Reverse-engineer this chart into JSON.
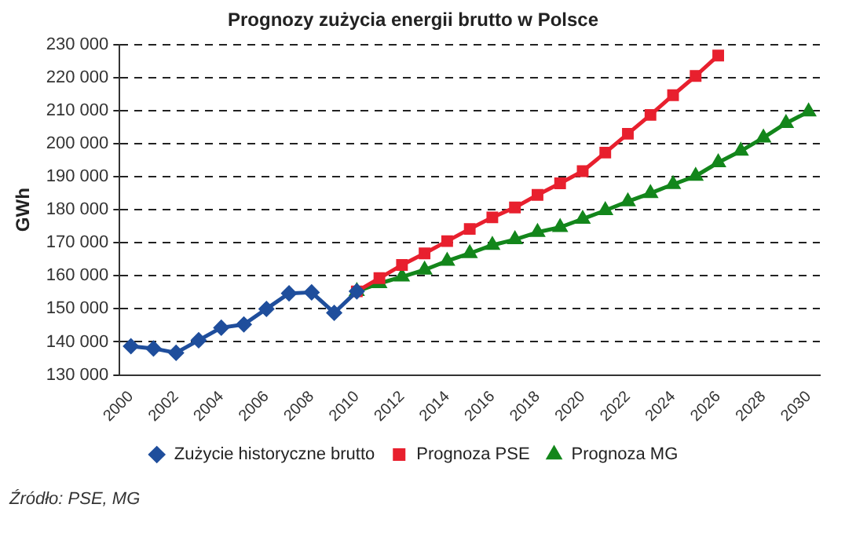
{
  "chart_data": {
    "type": "line",
    "title": "Prognozy zużycia energii brutto w Polsce",
    "ylabel": "GWh",
    "categories": [
      "2000",
      null,
      "2002",
      null,
      "2004",
      null,
      "2006",
      null,
      "2008",
      null,
      "2010",
      null,
      "2012",
      null,
      "2014",
      null,
      "2016",
      null,
      "2018",
      null,
      "2020",
      null,
      "2022",
      null,
      "2024",
      null,
      "2026",
      null,
      "2028",
      null,
      "2030"
    ],
    "series": [
      {
        "name": "Zużycie historyczne brutto",
        "color": "#1f4e9c",
        "marker": "diamond",
        "values": [
          138700,
          138000,
          136700,
          140500,
          144300,
          145300,
          150000,
          154700,
          155000,
          148800,
          155300,
          null,
          null,
          null,
          null,
          null,
          null,
          null,
          null,
          null,
          null,
          null,
          null,
          null,
          null,
          null,
          null,
          null,
          null,
          null,
          null
        ]
      },
      {
        "name": "Prognoza PSE",
        "color": "#e8202e",
        "marker": "square",
        "values": [
          null,
          null,
          null,
          null,
          null,
          null,
          null,
          null,
          null,
          null,
          155300,
          159300,
          163300,
          166800,
          170500,
          174200,
          177700,
          180700,
          184500,
          188000,
          191700,
          197300,
          203000,
          208700,
          214700,
          220500,
          226700,
          null,
          null,
          null,
          null
        ]
      },
      {
        "name": "Prognoza MG",
        "color": "#13861b",
        "marker": "triangle",
        "values": [
          null,
          null,
          null,
          null,
          null,
          null,
          null,
          null,
          null,
          null,
          155300,
          157700,
          159700,
          161800,
          164500,
          166800,
          169300,
          171000,
          173200,
          174700,
          177200,
          179800,
          182500,
          185000,
          187700,
          190200,
          194300,
          197800,
          201800,
          206200,
          209700
        ]
      }
    ],
    "ylim": [
      130000,
      230000
    ],
    "yticks": [
      {
        "value": 130000,
        "label": "130 000"
      },
      {
        "value": 140000,
        "label": "140 000"
      },
      {
        "value": 150000,
        "label": "150 000"
      },
      {
        "value": 160000,
        "label": "160 000"
      },
      {
        "value": 170000,
        "label": "170 000"
      },
      {
        "value": 180000,
        "label": "180 000"
      },
      {
        "value": 190000,
        "label": "190 000"
      },
      {
        "value": 200000,
        "label": "200 000"
      },
      {
        "value": 210000,
        "label": "210 000"
      },
      {
        "value": 220000,
        "label": "220 000"
      },
      {
        "value": 230000,
        "label": "230 000"
      }
    ],
    "grid": "y",
    "legend": "bottom",
    "line_style": "solid",
    "annotations": [
      "Źródło: PSE, MG"
    ]
  }
}
